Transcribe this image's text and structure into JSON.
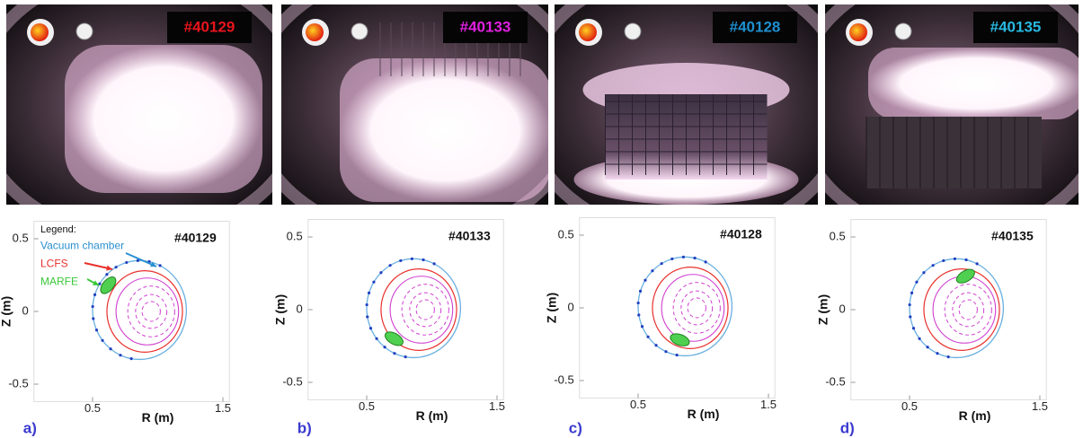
{
  "panels": [
    {
      "photo_label": "#40129",
      "label_color": "#e8141c",
      "plot_label": "#40129",
      "letter": "a)"
    },
    {
      "photo_label": "#40133",
      "label_color": "#e020e0",
      "plot_label": "#40133",
      "letter": "b)"
    },
    {
      "photo_label": "#40128",
      "label_color": "#1e8fd0",
      "plot_label": "#40128",
      "letter": "c)"
    },
    {
      "photo_label": "#40135",
      "label_color": "#28b8e0",
      "plot_label": "#40135",
      "letter": "d)"
    }
  ],
  "legend": {
    "title": "Legend:",
    "items": [
      {
        "text": "Vacuum chamber",
        "color": "#2a8fd0"
      },
      {
        "text": "LCFS",
        "color": "#e8302c"
      },
      {
        "text": "MARFE",
        "color": "#3cc83c"
      }
    ]
  },
  "axes": {
    "z_label": "Z (m)",
    "r_label": "R (m)",
    "z_ticks": [
      0.5,
      0,
      -0.5
    ],
    "r_ticks": [
      0.5,
      1.5
    ]
  }
}
